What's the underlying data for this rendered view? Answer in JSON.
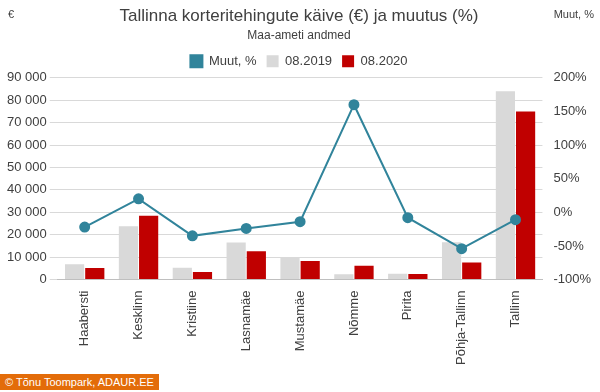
{
  "chart_data": {
    "type": "bar",
    "title": "Tallinna korteritehingute käive (€) ja muutus (%)",
    "subtitle": "Maa-ameti andmed",
    "ylabel": "€",
    "y2label": "Muut, %",
    "annotation": "© Tõnu Toompark, ADAUR.EE",
    "categories": [
      "Haabersti",
      "Kesklinn",
      "Kristiine",
      "Lasnamäe",
      "Mustamäe",
      "Nõmme",
      "Pirita",
      "Põhja-Tallinn",
      "Tallinn"
    ],
    "series": [
      {
        "name": "08.2019",
        "color": "#d9d9d9",
        "values": [
          6800,
          23800,
          5300,
          16500,
          9700,
          2400,
          2600,
          16600,
          84000
        ]
      },
      {
        "name": "08.2020",
        "color": "#c00000",
        "values": [
          5200,
          28500,
          3400,
          12600,
          8300,
          6200,
          2500,
          7600,
          75000
        ]
      },
      {
        "name": "Muut, %",
        "type": "line",
        "axis": "y2",
        "color": "#31849b",
        "marker": "circle",
        "values": [
          -22,
          20,
          -35,
          -24,
          -14,
          160,
          -8,
          -54,
          -11
        ]
      }
    ],
    "ylim": [
      0,
      90000
    ],
    "yticks": [
      0,
      {
        "value": 10000,
        "label": "10 000"
      },
      {
        "value": 20000,
        "label": "20 000"
      },
      {
        "value": 30000,
        "label": "30 000"
      },
      {
        "value": 40000,
        "label": "40 000"
      },
      {
        "value": 50000,
        "label": "50 000"
      },
      {
        "value": 60000,
        "label": "60 000"
      },
      {
        "value": 70000,
        "label": "70 000"
      },
      {
        "value": 80000,
        "label": "80 000"
      },
      {
        "value": 90000,
        "label": "90 000"
      }
    ],
    "y2lim": [
      -100,
      200
    ],
    "y2ticks": [
      {
        "value": -100,
        "label": "-100%"
      },
      {
        "value": -50,
        "label": "-50%"
      },
      {
        "value": 0,
        "label": "0%"
      },
      {
        "value": 50,
        "label": "50%"
      },
      {
        "value": 100,
        "label": "100%"
      },
      {
        "value": 150,
        "label": "150%"
      },
      {
        "value": 200,
        "label": "200%"
      }
    ],
    "legend": "top",
    "grid": true
  }
}
